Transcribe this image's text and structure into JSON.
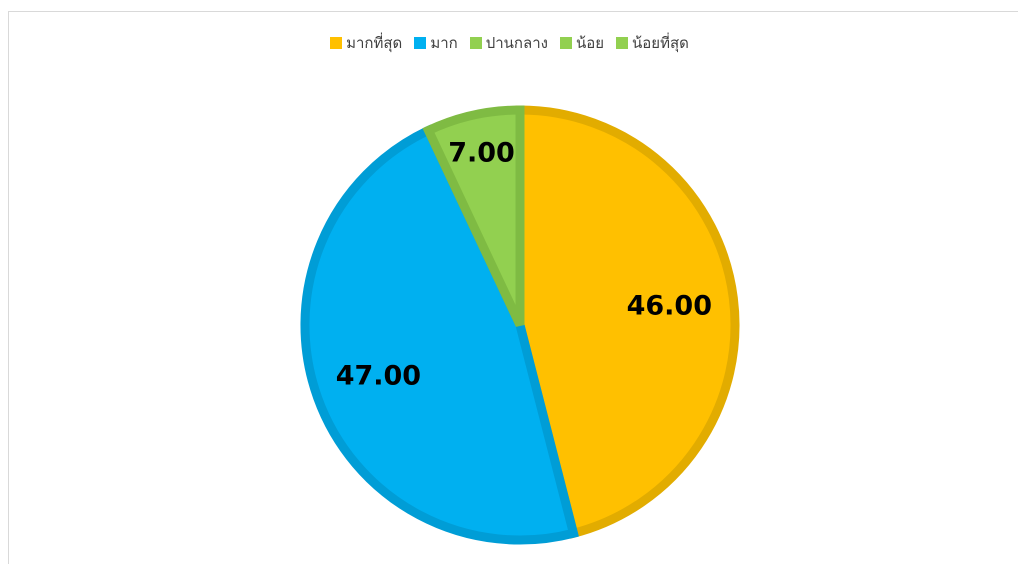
{
  "chart_data": {
    "type": "pie",
    "title": "",
    "categories": [
      "มากที่สุด",
      "มาก",
      "ปานกลาง",
      "น้อย",
      "น้อยที่สุด"
    ],
    "values": [
      46.0,
      47.0,
      7.0,
      0,
      0
    ],
    "value_labels": [
      "46.00",
      "47.00",
      "7.00",
      "",
      ""
    ],
    "colors": [
      "#FFC000",
      "#00B0F0",
      "#92D050",
      "#92D050",
      "#92D050"
    ],
    "border_colors": [
      "#E2AC00",
      "#009DD6",
      "#7FBB43",
      "#7FBB43",
      "#7FBB43"
    ],
    "legend_position": "top",
    "start_angle_deg": 0,
    "direction": "clockwise"
  }
}
